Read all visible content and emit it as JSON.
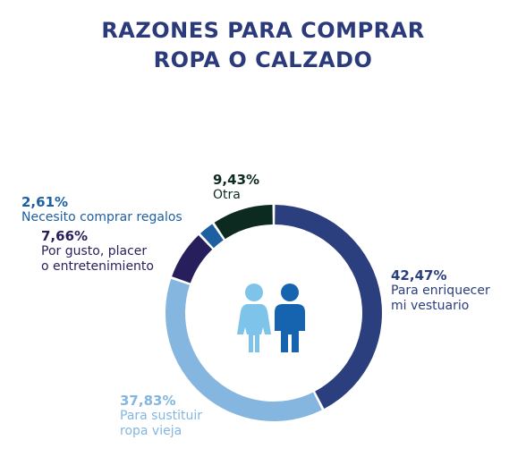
{
  "title_line1": "RAZONES PARA COMPRAR",
  "title_line2": "ROPA O CALZADO",
  "colors": {
    "title": "#2b3a7a",
    "enriquecer": "#2b3e7e",
    "sustituir": "#84b6df",
    "gusto": "#271f5b",
    "regalos": "#1d5fa0",
    "otra": "#0c2a1f",
    "icon_woman": "#7ec4ea",
    "icon_man": "#1664b0"
  },
  "chart_data": {
    "type": "pie",
    "donut": true,
    "title": "RAZONES PARA COMPRAR ROPA O CALZADO",
    "slices": [
      {
        "label": "Para enriquecer mi vestuario",
        "value": 42.47,
        "display": "42,47%",
        "color": "#2b3e7e"
      },
      {
        "label": "Para sustituir ropa vieja",
        "value": 37.83,
        "display": "37,83%",
        "color": "#84b6df"
      },
      {
        "label": "Por gusto, placer o entretenimiento",
        "value": 7.66,
        "display": "7,66%",
        "color": "#271f5b"
      },
      {
        "label": "Necesito comprar regalos",
        "value": 2.61,
        "display": "2,61%",
        "color": "#1d5fa0"
      },
      {
        "label": "Otra",
        "value": 9.43,
        "display": "9,43%",
        "color": "#0c2a1f"
      }
    ]
  },
  "labels": {
    "enriquecer": {
      "pct": "42,47%",
      "line1": "Para enriquecer",
      "line2": "mi vestuario"
    },
    "sustituir": {
      "pct": "37,83%",
      "line1": "Para sustituir",
      "line2": "ropa vieja"
    },
    "gusto": {
      "pct": "7,66%",
      "line1": "Por gusto, placer",
      "line2": "o entretenimiento"
    },
    "regalos": {
      "pct": "2,61%",
      "line1": "Necesito comprar regalos"
    },
    "otra": {
      "pct": "9,43%",
      "line1": "Otra"
    }
  },
  "icons": {
    "left": "woman-icon",
    "right": "man-icon"
  }
}
